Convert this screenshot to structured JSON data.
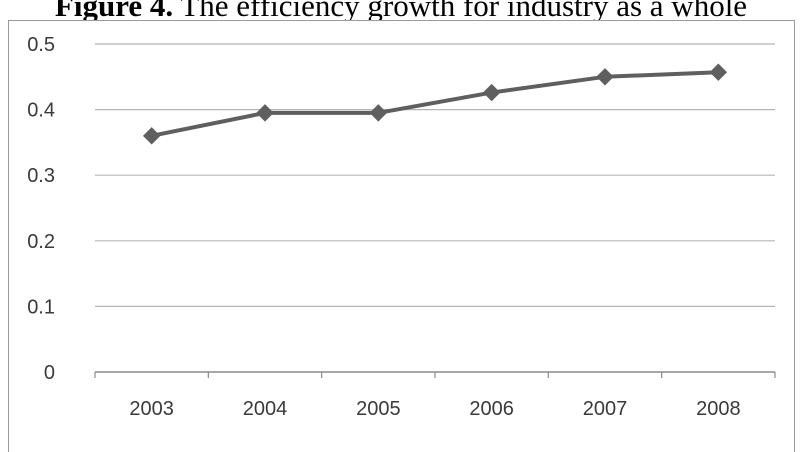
{
  "caption": {
    "label": "Figure 4.",
    "text": " The efficiency growth for industry as a whole"
  },
  "colors": {
    "line": "#5f5f5f",
    "marker": "#5f5f5f",
    "grid": "#b5b5b5",
    "axis": "#8a8a8a",
    "frame": "#9a9a9a"
  },
  "chart_data": {
    "type": "line",
    "categories": [
      "2003",
      "2004",
      "2005",
      "2006",
      "2007",
      "2008"
    ],
    "series": [
      {
        "values": [
          0.36,
          0.395,
          0.395,
          0.426,
          0.45,
          0.457
        ],
        "marker": "diamond"
      }
    ],
    "title": "",
    "xlabel": "",
    "ylabel": "",
    "ylim": [
      0,
      0.5
    ],
    "yticks": [
      "0",
      "0.1",
      "0.2",
      "0.3",
      "0.4",
      "0.5"
    ],
    "grid": true,
    "legend": "none"
  }
}
